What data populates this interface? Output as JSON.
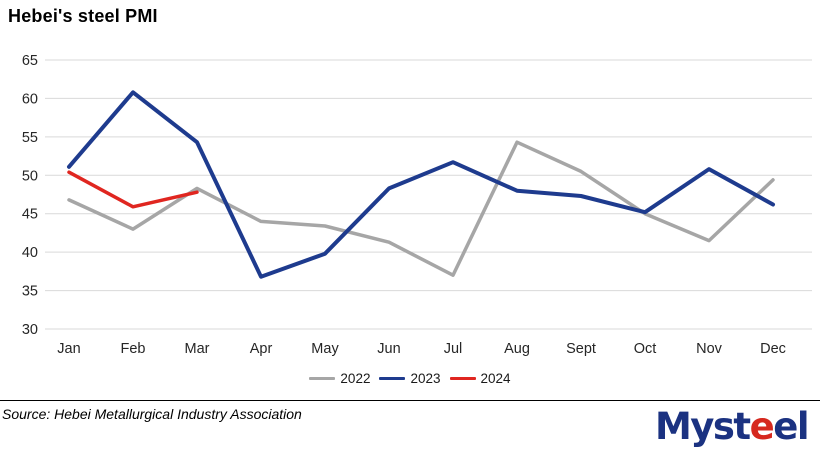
{
  "title": "Hebei's steel PMI",
  "source": "Source: Hebei Metallurgical Industry Association",
  "branding": {
    "logo_parts": [
      "Myst",
      "e",
      "e",
      "l"
    ]
  },
  "chart_data": {
    "type": "line",
    "title": "Hebei's steel PMI",
    "categories": [
      "Jan",
      "Feb",
      "Mar",
      "Apr",
      "May",
      "Jun",
      "Jul",
      "Aug",
      "Sept",
      "Oct",
      "Nov",
      "Dec"
    ],
    "series": [
      {
        "name": "2022",
        "color": "#a6a6a6",
        "values": [
          46.8,
          43.0,
          48.3,
          44.0,
          43.4,
          41.3,
          37.0,
          54.3,
          50.5,
          45.0,
          41.5,
          49.4
        ]
      },
      {
        "name": "2023",
        "color": "#1e3b8e",
        "values": [
          51.1,
          60.8,
          54.3,
          36.8,
          39.8,
          48.3,
          51.7,
          48.0,
          47.3,
          45.2,
          50.8,
          46.2
        ]
      },
      {
        "name": "2024",
        "color": "#e02620",
        "values": [
          50.4,
          45.9,
          47.8,
          null,
          null,
          null,
          null,
          null,
          null,
          null,
          null,
          null
        ]
      }
    ],
    "ylim": [
      30,
      65
    ],
    "yticks": [
      30,
      35,
      40,
      45,
      50,
      55,
      60,
      65
    ],
    "grid": "horizontal",
    "gridline_color": "#d9d9d9",
    "tick_label_color": "#262626",
    "legend_position": "bottom"
  }
}
